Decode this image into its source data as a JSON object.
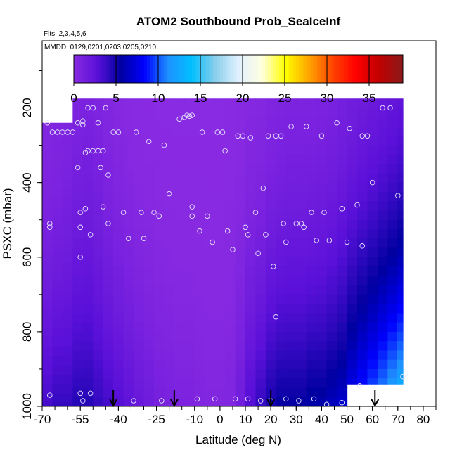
{
  "chart_data": {
    "type": "heatmap",
    "title": "ATOM2 Southbound Prob_SeaIceInf",
    "subtitle_flights": "Flts: 2,3,4,5,6",
    "subtitle_dates": "MMDD: 0129,0201,0203,0205,0210",
    "xlabel": "Latitude (deg N)",
    "ylabel": "PSXC (mbar)",
    "xlim": [
      -70,
      85
    ],
    "ylim": [
      1000,
      20
    ],
    "x_ticks": [
      -70,
      -55,
      -40,
      -25,
      -10,
      0,
      10,
      20,
      30,
      40,
      50,
      60,
      70,
      80
    ],
    "x_tick_labels": [
      "-70",
      "-55",
      "-40",
      "-25",
      "-10",
      "0",
      "10",
      "20",
      "30",
      "40",
      "50",
      "60",
      "70",
      "80"
    ],
    "y_ticks": [
      200,
      400,
      600,
      800,
      1000
    ],
    "y_tick_labels": [
      "200",
      "400",
      "600",
      "800",
      "1000"
    ],
    "colorbar": {
      "min": 0,
      "max": 39,
      "ticks": [
        0,
        5,
        10,
        15,
        20,
        25,
        30,
        35
      ],
      "tick_labels": [
        "0",
        "5",
        "10",
        "15",
        "20",
        "25",
        "30",
        "35"
      ],
      "colors": [
        "#8a2be2",
        "#5a10d8",
        "#0000a0",
        "#0000ff",
        "#1e90ff",
        "#00bfff",
        "#87ceeb",
        "#e0f0ff",
        "#ffffe0",
        "#ffff00",
        "#ffa500",
        "#ff4500",
        "#ff0000",
        "#c00000",
        "#8b1a1a"
      ]
    },
    "grid": false,
    "arrows_at_latitude": [
      -42,
      -18,
      20,
      61
    ],
    "profiles": [
      {
        "lat": -68,
        "top": 240,
        "bottom": 1000,
        "surface": 3.5,
        "mid": 1.2
      },
      {
        "lat": -64,
        "top": 240,
        "bottom": 1000,
        "surface": 4.0,
        "mid": 1.5
      },
      {
        "lat": -60,
        "top": 240,
        "bottom": 1000,
        "surface": 4.0,
        "mid": 1.8
      },
      {
        "lat": -56,
        "top": 175,
        "bottom": 1000,
        "surface": 4.5,
        "mid": 2.0
      },
      {
        "lat": -52,
        "top": 175,
        "bottom": 1000,
        "surface": 4.5,
        "mid": 2.2
      },
      {
        "lat": -48,
        "top": 175,
        "bottom": 1000,
        "surface": 4.0,
        "mid": 1.8
      },
      {
        "lat": -44,
        "top": 175,
        "bottom": 1000,
        "surface": 3.5,
        "mid": 1.2
      },
      {
        "lat": -40,
        "top": 175,
        "bottom": 1000,
        "surface": 3.0,
        "mid": 0.8
      },
      {
        "lat": -36,
        "top": 175,
        "bottom": 1000,
        "surface": 2.5,
        "mid": 0.5
      },
      {
        "lat": -32,
        "top": 175,
        "bottom": 1000,
        "surface": 2.0,
        "mid": 0.3
      },
      {
        "lat": -28,
        "top": 175,
        "bottom": 1000,
        "surface": 1.6,
        "mid": 0.2
      },
      {
        "lat": -24,
        "top": 175,
        "bottom": 1000,
        "surface": 1.2,
        "mid": 0.1
      },
      {
        "lat": -20,
        "top": 175,
        "bottom": 1000,
        "surface": 1.0,
        "mid": 0.1
      },
      {
        "lat": -16,
        "top": 175,
        "bottom": 1000,
        "surface": 0.8,
        "mid": 0.1
      },
      {
        "lat": -12,
        "top": 175,
        "bottom": 1000,
        "surface": 0.8,
        "mid": 0.1
      },
      {
        "lat": -8,
        "top": 175,
        "bottom": 1000,
        "surface": 0.6,
        "mid": 0.1
      },
      {
        "lat": -4,
        "top": 175,
        "bottom": 1000,
        "surface": 0.5,
        "mid": 0.1
      },
      {
        "lat": 0,
        "top": 175,
        "bottom": 1000,
        "surface": 0.5,
        "mid": 0.1
      },
      {
        "lat": 4,
        "top": 175,
        "bottom": 1000,
        "surface": 0.6,
        "mid": 0.2
      },
      {
        "lat": 8,
        "top": 175,
        "bottom": 1000,
        "surface": 1.5,
        "mid": 0.4
      },
      {
        "lat": 12,
        "top": 175,
        "bottom": 1000,
        "surface": 3.0,
        "mid": 0.8
      },
      {
        "lat": 16,
        "top": 175,
        "bottom": 1000,
        "surface": 4.0,
        "mid": 1.0
      },
      {
        "lat": 20,
        "top": 175,
        "bottom": 1000,
        "surface": 5.0,
        "mid": 1.5
      },
      {
        "lat": 24,
        "top": 175,
        "bottom": 1000,
        "surface": 5.5,
        "mid": 1.8
      },
      {
        "lat": 28,
        "top": 175,
        "bottom": 1000,
        "surface": 5.5,
        "mid": 2.0
      },
      {
        "lat": 32,
        "top": 175,
        "bottom": 1000,
        "surface": 5.5,
        "mid": 2.0
      },
      {
        "lat": 36,
        "top": 175,
        "bottom": 1000,
        "surface": 6.0,
        "mid": 2.0
      },
      {
        "lat": 40,
        "top": 175,
        "bottom": 1000,
        "surface": 6.0,
        "mid": 2.2
      },
      {
        "lat": 44,
        "top": 175,
        "bottom": 1000,
        "surface": 6.5,
        "mid": 2.5
      },
      {
        "lat": 48,
        "top": 175,
        "bottom": 1000,
        "surface": 7.0,
        "mid": 3.0
      },
      {
        "lat": 52,
        "top": 175,
        "bottom": 940,
        "surface": 7.5,
        "mid": 3.5
      },
      {
        "lat": 56,
        "top": 175,
        "bottom": 940,
        "surface": 8.5,
        "mid": 4.0
      },
      {
        "lat": 60,
        "top": 175,
        "bottom": 940,
        "surface": 9.5,
        "mid": 4.5
      },
      {
        "lat": 64,
        "top": 175,
        "bottom": 940,
        "surface": 10.5,
        "mid": 5.0
      },
      {
        "lat": 68,
        "top": 175,
        "bottom": 940,
        "surface": 11.5,
        "mid": 5.5
      },
      {
        "lat": 71,
        "top": 175,
        "bottom": 940,
        "surface": 12.5,
        "mid": 6.0
      }
    ],
    "flight_points": [
      [
        -68,
        240
      ],
      [
        -67,
        510
      ],
      [
        -67,
        520
      ],
      [
        -67,
        970
      ],
      [
        -66,
        265
      ],
      [
        -64,
        265
      ],
      [
        -62,
        265
      ],
      [
        -60,
        265
      ],
      [
        -58,
        265
      ],
      [
        -56,
        240
      ],
      [
        -56,
        360
      ],
      [
        -55,
        480
      ],
      [
        -55,
        520
      ],
      [
        -55,
        600
      ],
      [
        -55,
        965
      ],
      [
        -54,
        235
      ],
      [
        -54,
        245
      ],
      [
        -54,
        985
      ],
      [
        -53,
        320
      ],
      [
        -53,
        470
      ],
      [
        -52,
        200
      ],
      [
        -52,
        315
      ],
      [
        -51,
        540
      ],
      [
        -51,
        965
      ],
      [
        -50,
        315
      ],
      [
        -50,
        200
      ],
      [
        -48,
        315
      ],
      [
        -48,
        240
      ],
      [
        -47,
        360
      ],
      [
        -46,
        315
      ],
      [
        -46,
        465
      ],
      [
        -45,
        200
      ],
      [
        -44,
        380
      ],
      [
        -44,
        510
      ],
      [
        -42,
        265
      ],
      [
        -40,
        265
      ],
      [
        -38,
        480
      ],
      [
        -36,
        550
      ],
      [
        -34,
        985
      ],
      [
        -33,
        265
      ],
      [
        -31,
        480
      ],
      [
        -30,
        550
      ],
      [
        -28,
        290
      ],
      [
        -26,
        480
      ],
      [
        -24,
        490
      ],
      [
        -23,
        985
      ],
      [
        -22,
        300
      ],
      [
        -20,
        430
      ],
      [
        -16,
        230
      ],
      [
        -14,
        225
      ],
      [
        -13,
        220
      ],
      [
        -12,
        222
      ],
      [
        -11,
        220
      ],
      [
        -11,
        465
      ],
      [
        -11,
        490
      ],
      [
        -9,
        980
      ],
      [
        -8,
        530
      ],
      [
        -7,
        265
      ],
      [
        -5,
        490
      ],
      [
        -3,
        560
      ],
      [
        -2,
        980
      ],
      [
        -1,
        265
      ],
      [
        1,
        265
      ],
      [
        2,
        315
      ],
      [
        3,
        530
      ],
      [
        5,
        580
      ],
      [
        6,
        980
      ],
      [
        7,
        275
      ],
      [
        9,
        275
      ],
      [
        10,
        520
      ],
      [
        11,
        980
      ],
      [
        11,
        540
      ],
      [
        12,
        280
      ],
      [
        14,
        480
      ],
      [
        15,
        590
      ],
      [
        16,
        985
      ],
      [
        17,
        415
      ],
      [
        18,
        540
      ],
      [
        19,
        275
      ],
      [
        20,
        985
      ],
      [
        21,
        625
      ],
      [
        22,
        760
      ],
      [
        22,
        275
      ],
      [
        24,
        275
      ],
      [
        25,
        510
      ],
      [
        26,
        980
      ],
      [
        26,
        560
      ],
      [
        28,
        250
      ],
      [
        30,
        510
      ],
      [
        31,
        985
      ],
      [
        32,
        510
      ],
      [
        33,
        520
      ],
      [
        34,
        250
      ],
      [
        36,
        480
      ],
      [
        37,
        980
      ],
      [
        38,
        555
      ],
      [
        40,
        275
      ],
      [
        41,
        480
      ],
      [
        42,
        995
      ],
      [
        43,
        555
      ],
      [
        46,
        240
      ],
      [
        48,
        470
      ],
      [
        48,
        990
      ],
      [
        50,
        560
      ],
      [
        51,
        255
      ],
      [
        54,
        460
      ],
      [
        55,
        945
      ],
      [
        56,
        570
      ],
      [
        56,
        275
      ],
      [
        58,
        275
      ],
      [
        60,
        400
      ],
      [
        64,
        200
      ],
      [
        67,
        200
      ],
      [
        70,
        435
      ],
      [
        72,
        920
      ]
    ]
  }
}
